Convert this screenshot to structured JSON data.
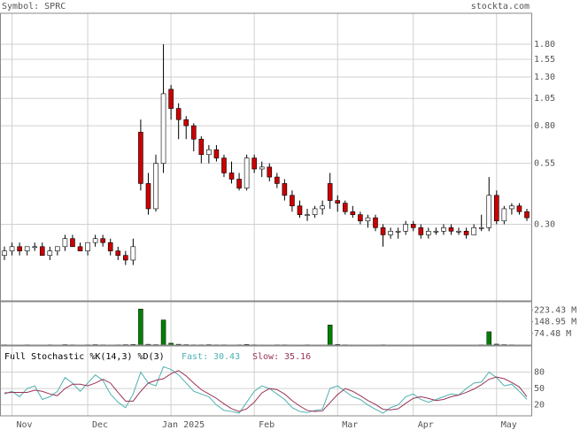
{
  "header": {
    "symbol": "Symbol: SPRC",
    "site": "stockta.com"
  },
  "chart_data": [
    {
      "type": "candlestick",
      "log_scale": true,
      "grid": true,
      "up_color": "#ffffff",
      "down_color": "#cc0000",
      "categories": [
        null,
        "Nov",
        null,
        null,
        null,
        null,
        null,
        null,
        null,
        null,
        null,
        "Dec",
        null,
        null,
        null,
        null,
        null,
        null,
        null,
        null,
        null,
        null,
        "Jan 2025",
        null,
        null,
        null,
        null,
        null,
        null,
        null,
        null,
        null,
        null,
        "Feb",
        null,
        null,
        null,
        null,
        null,
        null,
        null,
        null,
        null,
        null,
        "Mar",
        null,
        null,
        null,
        null,
        null,
        null,
        null,
        null,
        null,
        "Apr",
        null,
        null,
        null,
        null,
        null,
        null,
        null,
        null,
        null,
        null,
        "May",
        null,
        null,
        null,
        null
      ],
      "open": [
        0.22,
        0.23,
        0.24,
        0.23,
        0.24,
        0.24,
        0.22,
        0.23,
        0.24,
        0.26,
        0.24,
        0.23,
        0.25,
        0.26,
        0.25,
        0.23,
        0.22,
        0.21,
        0.75,
        0.45,
        0.35,
        0.55,
        1.15,
        0.95,
        0.85,
        0.8,
        0.7,
        0.6,
        0.63,
        0.58,
        0.5,
        0.47,
        0.43,
        0.58,
        0.52,
        0.53,
        0.48,
        0.45,
        0.4,
        0.36,
        0.33,
        0.33,
        0.35,
        0.45,
        0.38,
        0.37,
        0.34,
        0.33,
        0.31,
        0.32,
        0.29,
        0.27,
        0.28,
        0.28,
        0.3,
        0.29,
        0.27,
        0.28,
        0.28,
        0.29,
        0.28,
        0.28,
        0.27,
        0.29,
        0.29,
        0.4,
        0.31,
        0.35,
        0.36,
        0.34
      ],
      "high": [
        0.24,
        0.25,
        0.25,
        0.24,
        0.25,
        0.25,
        0.24,
        0.24,
        0.27,
        0.27,
        0.25,
        0.25,
        0.27,
        0.27,
        0.26,
        0.24,
        0.23,
        0.26,
        0.85,
        0.5,
        0.6,
        1.8,
        1.2,
        1.0,
        0.88,
        0.82,
        0.72,
        0.66,
        0.66,
        0.6,
        0.56,
        0.5,
        0.6,
        0.6,
        0.56,
        0.55,
        0.5,
        0.47,
        0.42,
        0.38,
        0.35,
        0.36,
        0.38,
        0.5,
        0.4,
        0.38,
        0.36,
        0.34,
        0.33,
        0.33,
        0.3,
        0.29,
        0.29,
        0.31,
        0.31,
        0.3,
        0.29,
        0.29,
        0.3,
        0.3,
        0.29,
        0.29,
        0.3,
        0.33,
        0.48,
        0.42,
        0.36,
        0.37,
        0.37,
        0.35
      ],
      "low": [
        0.21,
        0.22,
        0.22,
        0.22,
        0.23,
        0.22,
        0.21,
        0.22,
        0.23,
        0.24,
        0.23,
        0.22,
        0.24,
        0.24,
        0.22,
        0.21,
        0.2,
        0.2,
        0.42,
        0.33,
        0.34,
        0.5,
        0.85,
        0.7,
        0.7,
        0.62,
        0.55,
        0.55,
        0.56,
        0.48,
        0.45,
        0.42,
        0.42,
        0.5,
        0.48,
        0.46,
        0.43,
        0.38,
        0.34,
        0.32,
        0.31,
        0.32,
        0.33,
        0.35,
        0.34,
        0.33,
        0.32,
        0.3,
        0.29,
        0.28,
        0.24,
        0.26,
        0.26,
        0.27,
        0.28,
        0.26,
        0.26,
        0.27,
        0.27,
        0.27,
        0.27,
        0.26,
        0.27,
        0.28,
        0.28,
        0.3,
        0.3,
        0.33,
        0.33,
        0.31
      ],
      "close": [
        0.23,
        0.24,
        0.23,
        0.24,
        0.24,
        0.22,
        0.23,
        0.24,
        0.26,
        0.24,
        0.23,
        0.25,
        0.26,
        0.25,
        0.23,
        0.22,
        0.21,
        0.24,
        0.45,
        0.35,
        0.55,
        1.1,
        0.95,
        0.85,
        0.8,
        0.7,
        0.6,
        0.63,
        0.58,
        0.5,
        0.47,
        0.43,
        0.58,
        0.52,
        0.53,
        0.48,
        0.45,
        0.4,
        0.36,
        0.33,
        0.33,
        0.35,
        0.36,
        0.38,
        0.37,
        0.34,
        0.33,
        0.31,
        0.32,
        0.29,
        0.27,
        0.28,
        0.28,
        0.3,
        0.29,
        0.27,
        0.28,
        0.28,
        0.29,
        0.28,
        0.28,
        0.27,
        0.29,
        0.29,
        0.4,
        0.31,
        0.35,
        0.36,
        0.34,
        0.32
      ],
      "ylim": [
        0.14,
        2.45
      ],
      "yticks": [
        {
          "value": 1.8,
          "label": "1.80"
        },
        1.55,
        {
          "value": 1.3,
          "label": "1.30"
        },
        1.05,
        {
          "value": 0.8,
          "label": "0.80"
        },
        0.55,
        {
          "value": 0.3,
          "label": "0.30"
        }
      ]
    },
    {
      "type": "bar",
      "color": "#008000",
      "values": [
        2,
        1.5,
        1,
        2,
        1.5,
        1,
        2,
        1,
        3,
        2,
        1,
        2,
        3,
        2,
        1.5,
        2,
        3,
        4,
        230,
        5,
        3,
        160,
        12,
        5,
        3,
        2,
        2,
        3,
        2,
        2,
        1.5,
        2,
        4,
        2,
        1.5,
        1,
        2,
        2,
        1.5,
        1,
        2,
        1,
        1.5,
        128,
        4,
        2,
        1.5,
        1,
        1,
        1.5,
        2,
        1,
        1,
        1.5,
        1,
        1,
        1,
        1,
        1,
        1.5,
        1,
        1,
        1,
        2,
        85,
        6,
        3,
        2,
        1.5,
        1
      ],
      "ylim": [
        0,
        276.6
      ],
      "yticks": [
        {
          "value": 223.43,
          "label": "223.43 M"
        },
        {
          "value": 148.95,
          "label": "148.95 M"
        },
        {
          "value": 74.48,
          "label": "74.48 M"
        }
      ]
    },
    {
      "type": "line",
      "title": "Full Stochastic %K(14,3) %D(3)",
      "ylim": [
        0,
        128
      ],
      "yticks": [
        20,
        50,
        80
      ],
      "series": [
        {
          "name": "Fast:",
          "color": "#4fb0b0",
          "values": [
            40,
            45,
            35,
            50,
            55,
            30,
            35,
            45,
            70,
            60,
            45,
            60,
            75,
            65,
            40,
            25,
            15,
            40,
            80,
            60,
            55,
            90,
            85,
            75,
            60,
            45,
            40,
            35,
            20,
            10,
            8,
            5,
            25,
            45,
            55,
            50,
            40,
            30,
            15,
            8,
            6,
            10,
            12,
            50,
            55,
            45,
            35,
            30,
            20,
            12,
            5,
            15,
            20,
            35,
            40,
            30,
            25,
            30,
            35,
            40,
            38,
            50,
            60,
            62,
            80,
            70,
            55,
            58,
            45,
            30.43
          ]
        },
        {
          "name": "Slow:",
          "color": "#993355",
          "values": [
            42,
            43,
            43,
            43,
            47,
            45,
            40,
            37,
            50,
            58,
            58,
            55,
            60,
            67,
            60,
            43,
            27,
            27,
            45,
            60,
            65,
            68,
            77,
            83,
            73,
            60,
            48,
            40,
            32,
            22,
            13,
            8,
            13,
            25,
            42,
            50,
            48,
            40,
            28,
            18,
            10,
            8,
            9,
            24,
            39,
            50,
            45,
            37,
            28,
            21,
            12,
            11,
            13,
            23,
            32,
            35,
            32,
            28,
            30,
            35,
            38,
            43,
            49,
            57,
            67,
            71,
            68,
            61,
            53,
            35.16
          ]
        }
      ]
    }
  ]
}
